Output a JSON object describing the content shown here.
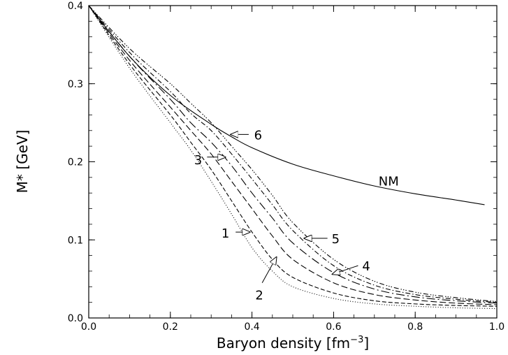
{
  "chart_data": {
    "type": "line",
    "xlabel": "Baryon density [fm",
    "xlabel_exp": "−3",
    "xlabel_end": "]",
    "ylabel": "M* [GeV]",
    "xlim": [
      0.0,
      1.0
    ],
    "ylim": [
      0.0,
      0.4
    ],
    "grid": false,
    "x_ticks": [
      {
        "value": 0.0,
        "label": "0.0"
      },
      {
        "value": 0.2,
        "label": "0.2"
      },
      {
        "value": 0.4,
        "label": "0.4"
      },
      {
        "value": 0.6,
        "label": "0.6"
      },
      {
        "value": 0.8,
        "label": "0.8"
      },
      {
        "value": 1.0,
        "label": "1.0"
      }
    ],
    "y_ticks": [
      {
        "value": 0.0,
        "label": "0.0"
      },
      {
        "value": 0.1,
        "label": "0.1"
      },
      {
        "value": 0.2,
        "label": "0.2"
      },
      {
        "value": 0.3,
        "label": "0.3"
      },
      {
        "value": 0.4,
        "label": "0.4"
      }
    ],
    "series": [
      {
        "name": "NM",
        "dash": "",
        "x": [
          0.0,
          0.1,
          0.2,
          0.3,
          0.35,
          0.4,
          0.5,
          0.6,
          0.7,
          0.8,
          0.9,
          0.97
        ],
        "y": [
          0.4,
          0.335,
          0.285,
          0.248,
          0.232,
          0.218,
          0.197,
          0.182,
          0.169,
          0.159,
          0.151,
          0.145
        ]
      },
      {
        "name": "1",
        "dash": "1,2.5",
        "x": [
          0.0,
          0.1,
          0.2,
          0.25,
          0.3,
          0.35,
          0.4,
          0.45,
          0.5,
          0.6,
          0.7,
          0.8,
          0.9,
          1.0
        ],
        "y": [
          0.4,
          0.32,
          0.25,
          0.215,
          0.175,
          0.133,
          0.09,
          0.06,
          0.04,
          0.025,
          0.018,
          0.015,
          0.013,
          0.012
        ]
      },
      {
        "name": "2",
        "dash": "6,3",
        "x": [
          0.0,
          0.1,
          0.2,
          0.25,
          0.3,
          0.35,
          0.4,
          0.45,
          0.5,
          0.6,
          0.7,
          0.8,
          0.9,
          1.0
        ],
        "y": [
          0.4,
          0.325,
          0.26,
          0.225,
          0.19,
          0.15,
          0.11,
          0.075,
          0.052,
          0.032,
          0.022,
          0.018,
          0.016,
          0.015
        ]
      },
      {
        "name": "3",
        "dash": "9,4",
        "x": [
          0.0,
          0.1,
          0.2,
          0.25,
          0.3,
          0.35,
          0.4,
          0.45,
          0.5,
          0.6,
          0.7,
          0.8,
          0.9,
          1.0
        ],
        "y": [
          0.4,
          0.33,
          0.27,
          0.24,
          0.21,
          0.175,
          0.14,
          0.105,
          0.075,
          0.045,
          0.03,
          0.023,
          0.019,
          0.017
        ]
      },
      {
        "name": "4",
        "dash": "12,4,2,4",
        "x": [
          0.0,
          0.1,
          0.2,
          0.25,
          0.3,
          0.35,
          0.4,
          0.45,
          0.5,
          0.6,
          0.7,
          0.8,
          0.9,
          1.0
        ],
        "y": [
          0.4,
          0.335,
          0.28,
          0.25,
          0.225,
          0.195,
          0.16,
          0.128,
          0.096,
          0.058,
          0.037,
          0.027,
          0.022,
          0.019
        ]
      },
      {
        "name": "5",
        "dash": "7,3,1.5,3",
        "x": [
          0.0,
          0.1,
          0.2,
          0.25,
          0.3,
          0.35,
          0.4,
          0.45,
          0.5,
          0.6,
          0.7,
          0.8,
          0.9,
          1.0
        ],
        "y": [
          0.4,
          0.34,
          0.29,
          0.262,
          0.24,
          0.21,
          0.178,
          0.145,
          0.112,
          0.067,
          0.042,
          0.03,
          0.024,
          0.02
        ]
      },
      {
        "name": "6",
        "dash": "7,3,1.5,2,1.5,2,1.5,3",
        "x": [
          0.0,
          0.1,
          0.2,
          0.25,
          0.3,
          0.35,
          0.4,
          0.45,
          0.5,
          0.6,
          0.7,
          0.8,
          0.9,
          1.0
        ],
        "y": [
          0.4,
          0.345,
          0.3,
          0.275,
          0.25,
          0.22,
          0.19,
          0.157,
          0.122,
          0.075,
          0.047,
          0.033,
          0.026,
          0.021
        ]
      }
    ],
    "annotations": [
      {
        "id": "1",
        "text": "1",
        "label_at": [
          0.335,
          0.109
        ],
        "tail": [
          0.36,
          0.11
        ],
        "head": [
          0.395,
          0.11
        ]
      },
      {
        "id": "2",
        "text": "2",
        "label_at": [
          0.418,
          0.03
        ],
        "tail": [
          0.425,
          0.045
        ],
        "head": [
          0.46,
          0.078
        ]
      },
      {
        "id": "3",
        "text": "3",
        "label_at": [
          0.268,
          0.203
        ],
        "tail": [
          0.29,
          0.206
        ],
        "head": [
          0.335,
          0.206
        ]
      },
      {
        "id": "4",
        "text": "4",
        "label_at": [
          0.68,
          0.067
        ],
        "tail": [
          0.66,
          0.067
        ],
        "head": [
          0.597,
          0.056
        ]
      },
      {
        "id": "5",
        "text": "5",
        "label_at": [
          0.605,
          0.102
        ],
        "tail": [
          0.585,
          0.102
        ],
        "head": [
          0.528,
          0.102
        ]
      },
      {
        "id": "6",
        "text": "6",
        "label_at": [
          0.415,
          0.235
        ],
        "tail": [
          0.392,
          0.235
        ],
        "head": [
          0.348,
          0.235
        ]
      },
      {
        "id": "NM",
        "text": "NM",
        "label_at": [
          0.735,
          0.176
        ]
      }
    ]
  }
}
